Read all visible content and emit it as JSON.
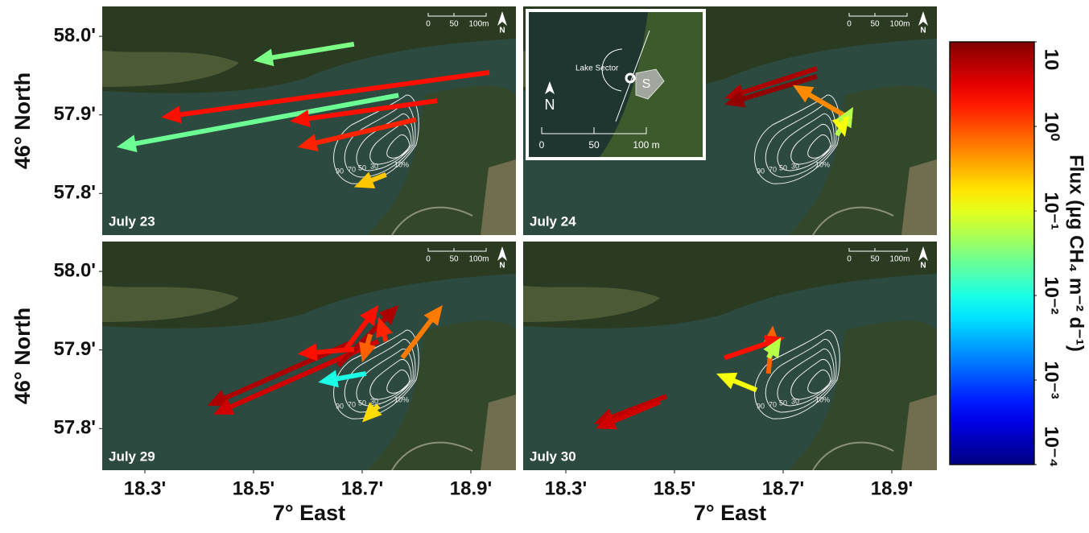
{
  "chart_data": [
    {
      "type": "map",
      "label": "July 23",
      "ylabel": "46° North",
      "xlim": [
        18.2215,
        18.983
      ],
      "ylim": [
        57.747,
        58.038
      ],
      "yticks": [
        {
          "value": 58.0,
          "label": "58.0'"
        },
        {
          "value": 57.9,
          "label": "57.9'"
        },
        {
          "value": 57.8,
          "label": "57.8'"
        }
      ],
      "arrows": {
        "x": [
          18.685,
          18.934,
          18.767,
          18.838,
          18.799,
          18.744
        ],
        "y": [
          57.99,
          57.954,
          57.925,
          57.918,
          57.894,
          57.824
        ],
        "x2": [
          18.5,
          18.33,
          18.248,
          18.567,
          18.581,
          18.685
        ],
        "y2": [
          57.969,
          57.897,
          57.859,
          57.892,
          57.859,
          57.808
        ],
        "flux": [
          0.03,
          2,
          0.025,
          2,
          1.6,
          0.25
        ]
      },
      "footprint_labels": [
        "90",
        "70",
        "50",
        "30",
        "10%"
      ],
      "scalebar": [
        "0",
        "50",
        "100m"
      ],
      "north": "N"
    },
    {
      "type": "map",
      "label": "July 24",
      "xlim": [
        18.2215,
        18.983
      ],
      "ylim": [
        57.747,
        58.038
      ],
      "arrows": {
        "x": [
          18.762,
          18.762,
          18.826,
          18.799,
          18.807
        ],
        "y": [
          57.959,
          57.949,
          57.894,
          57.874,
          57.892
        ],
        "x2": [
          18.592,
          18.592,
          18.718,
          18.829,
          18.814
        ],
        "y2": [
          57.921,
          57.913,
          57.938,
          57.91,
          57.872
        ],
        "flux": [
          6,
          8,
          0.5,
          0.06,
          0.12
        ]
      },
      "footprint_labels": [
        "90",
        "70",
        "50",
        "30",
        "10%"
      ],
      "scalebar": [
        "0",
        "50",
        "100m"
      ],
      "north": "N",
      "inset": {
        "sector": "Lake Sector",
        "site": "S",
        "north": "N",
        "scale": [
          "0",
          "50",
          "100 m"
        ]
      }
    },
    {
      "type": "map",
      "label": "July 29",
      "ylabel": "46° North",
      "xlabel": "7° East",
      "xlim": [
        18.2215,
        18.983
      ],
      "ylim": [
        57.747,
        58.038
      ],
      "xticks": [
        {
          "value": 18.3,
          "label": "18.3'"
        },
        {
          "value": 18.5,
          "label": "18.5'"
        },
        {
          "value": 18.7,
          "label": "18.7'"
        },
        {
          "value": 18.9,
          "label": "18.9'"
        }
      ],
      "yticks": [
        {
          "value": 58.0,
          "label": "58.0'"
        },
        {
          "value": 57.9,
          "label": "57.9'"
        },
        {
          "value": 57.8,
          "label": "57.8'"
        }
      ],
      "arrows": {
        "x": [
          18.685,
          18.73,
          18.656,
          18.67,
          18.774,
          18.685,
          18.715,
          18.707,
          18.73,
          18.744
        ],
        "y": [
          57.911,
          57.911,
          57.88,
          57.901,
          57.89,
          57.901,
          57.92,
          57.87,
          57.829,
          57.911
        ],
        "x2": [
          18.415,
          18.426,
          18.767,
          18.73,
          18.848,
          18.581,
          18.7,
          18.619,
          18.7,
          18.73
        ],
        "y2": [
          57.829,
          57.818,
          57.957,
          57.957,
          57.957,
          57.895,
          57.884,
          57.859,
          57.808,
          57.942
        ],
        "flux": [
          6,
          4,
          6,
          2,
          0.6,
          2,
          0.8,
          0.01,
          0.2,
          1.6
        ]
      },
      "footprint_labels": [
        "90",
        "70",
        "50",
        "30",
        "10%"
      ],
      "scalebar": [
        "0",
        "50",
        "100m"
      ],
      "north": "N"
    },
    {
      "type": "map",
      "label": "July 30",
      "xlabel": "7° East",
      "xlim": [
        18.2215,
        18.983
      ],
      "ylim": [
        57.747,
        58.038
      ],
      "xticks": [
        {
          "value": 18.3,
          "label": "18.3'"
        },
        {
          "value": 18.5,
          "label": "18.5'"
        },
        {
          "value": 18.7,
          "label": "18.7'"
        },
        {
          "value": 18.9,
          "label": "18.9'"
        }
      ],
      "arrows": {
        "x": [
          18.485,
          18.473,
          18.673,
          18.592,
          18.673,
          18.651
        ],
        "y": [
          57.841,
          57.834,
          57.87,
          57.89,
          57.89,
          57.849
        ],
        "x2": [
          18.352,
          18.355,
          18.681,
          18.703,
          18.696,
          18.577
        ],
        "y2": [
          57.806,
          57.8,
          57.931,
          57.916,
          57.916,
          57.87
        ],
        "flux": [
          5,
          4,
          0.8,
          2,
          0.06,
          0.12
        ]
      },
      "footprint_labels": [
        "90",
        "70",
        "50",
        "30",
        "10%"
      ],
      "scalebar": [
        "0",
        "50",
        "100m"
      ],
      "north": "N"
    },
    {
      "type": "colorbar",
      "title": "Flux (μg CH₄ m⁻² d⁻¹)",
      "log": true,
      "colormap": "jet",
      "ylim": [
        0.0001,
        10
      ],
      "yticks": [
        10,
        {
          "value": 1,
          "label": "10⁰"
        },
        {
          "value": 0.1,
          "label": "10⁻¹"
        },
        {
          "value": 0.01,
          "label": "10⁻²"
        },
        {
          "value": 0.001,
          "label": "10⁻³"
        },
        {
          "value": 0.0001,
          "label": "10⁻⁴"
        }
      ]
    }
  ]
}
